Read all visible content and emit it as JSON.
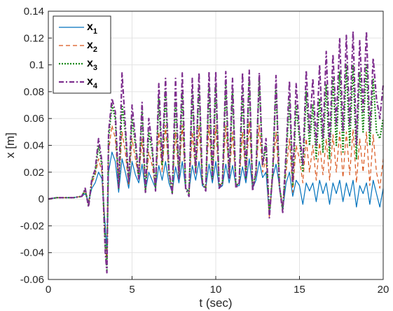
{
  "chart_data": {
    "type": "line",
    "title": "",
    "xlabel": "t (sec)",
    "ylabel": "x [m]",
    "xlim": [
      0,
      20
    ],
    "ylim": [
      -0.06,
      0.14
    ],
    "xticks": [
      "0",
      "5",
      "10",
      "15",
      "20"
    ],
    "yticks": [
      "-0.06",
      "-0.04",
      "-0.02",
      "0",
      "0.02",
      "0.04",
      "0.06",
      "0.08",
      "0.1",
      "0.12",
      "0.14"
    ],
    "grid": true,
    "legend": "top-left",
    "series": [
      {
        "name": "x1",
        "label_main": "x",
        "label_sub": "1",
        "color": "#0072BD",
        "dash": "",
        "width": 1.2,
        "x": [
          0,
          0.5,
          1.0,
          1.5,
          2.0,
          2.2,
          2.4,
          2.6,
          2.8,
          3.0,
          3.2,
          3.4,
          3.5,
          3.6,
          3.8,
          4.0,
          4.2,
          4.4,
          4.6,
          4.8,
          5.0,
          5.2,
          5.4,
          5.6,
          5.8,
          6.0,
          6.2,
          6.4,
          6.6,
          6.8,
          7.0,
          7.2,
          7.4,
          7.6,
          7.8,
          8.0,
          8.2,
          8.4,
          8.6,
          8.8,
          9.0,
          9.2,
          9.4,
          9.6,
          9.8,
          10.0,
          10.2,
          10.4,
          10.6,
          10.8,
          11.0,
          11.2,
          11.4,
          11.6,
          11.8,
          12.0,
          12.2,
          12.4,
          12.6,
          12.8,
          13.0,
          13.2,
          13.4,
          13.6,
          13.8,
          14.0,
          14.2,
          14.4,
          14.6,
          14.8,
          15.0,
          15.2,
          15.4,
          15.6,
          15.8,
          16.0,
          16.2,
          16.4,
          16.6,
          16.8,
          17.0,
          17.2,
          17.4,
          17.6,
          17.8,
          18.0,
          18.2,
          18.4,
          18.6,
          18.8,
          19.0,
          19.2,
          19.4,
          19.6,
          19.8,
          20.0
        ],
        "values": [
          0,
          0.001,
          0.001,
          0.001,
          0.002,
          0.004,
          -0.002,
          0.008,
          0.012,
          0.02,
          0.015,
          -0.02,
          -0.04,
          0.02,
          0.035,
          0.028,
          0.005,
          0.03,
          0.02,
          0.008,
          0.028,
          0.018,
          0.012,
          0.026,
          0.006,
          0.02,
          0.014,
          0.008,
          0.025,
          0.014,
          0.028,
          0.012,
          0.005,
          0.024,
          0.012,
          0.028,
          0.008,
          0.006,
          0.025,
          0.014,
          0.028,
          0.01,
          0.008,
          0.026,
          0.012,
          0.028,
          0.008,
          0.01,
          0.026,
          0.012,
          0.025,
          0.01,
          0.01,
          0.024,
          0.012,
          0.03,
          0.008,
          0.014,
          0.028,
          0.016,
          0.02,
          -0.012,
          0.016,
          0.026,
          0.01,
          -0.008,
          0.012,
          0.02,
          0.002,
          0.014,
          0.01,
          -0.004,
          0.012,
          0.006,
          0.012,
          -0.002,
          0.014,
          0.004,
          0.012,
          -0.004,
          0.012,
          0.004,
          0.014,
          -0.002,
          0.012,
          0.002,
          0.014,
          -0.006,
          0.01,
          0.004,
          0.012,
          -0.004,
          0.014,
          0.004,
          -0.006,
          0.008
        ]
      },
      {
        "name": "x2",
        "label_main": "x",
        "label_sub": "2",
        "color": "#D95319",
        "dash": "6,4",
        "width": 1.2,
        "x": [
          0,
          0.5,
          1.0,
          1.5,
          2.0,
          2.2,
          2.4,
          2.6,
          2.8,
          3.0,
          3.2,
          3.4,
          3.5,
          3.6,
          3.8,
          4.0,
          4.2,
          4.4,
          4.6,
          4.8,
          5.0,
          5.2,
          5.4,
          5.6,
          5.8,
          6.0,
          6.2,
          6.4,
          6.6,
          6.8,
          7.0,
          7.2,
          7.4,
          7.6,
          7.8,
          8.0,
          8.2,
          8.4,
          8.6,
          8.8,
          9.0,
          9.2,
          9.4,
          9.6,
          9.8,
          10.0,
          10.2,
          10.4,
          10.6,
          10.8,
          11.0,
          11.2,
          11.4,
          11.6,
          11.8,
          12.0,
          12.2,
          12.4,
          12.6,
          12.8,
          13.0,
          13.2,
          13.4,
          13.6,
          13.8,
          14.0,
          14.2,
          14.4,
          14.6,
          14.8,
          15.0,
          15.2,
          15.4,
          15.6,
          15.8,
          16.0,
          16.2,
          16.4,
          16.6,
          16.8,
          17.0,
          17.2,
          17.4,
          17.6,
          17.8,
          18.0,
          18.2,
          18.4,
          18.6,
          18.8,
          19.0,
          19.2,
          19.4,
          19.6,
          19.8,
          20.0
        ],
        "values": [
          0,
          0.001,
          0.001,
          0.001,
          0.002,
          0.006,
          -0.004,
          0.012,
          0.018,
          0.03,
          0.02,
          -0.03,
          -0.05,
          0.035,
          0.055,
          0.045,
          0.008,
          0.05,
          0.035,
          0.01,
          0.045,
          0.03,
          0.015,
          0.045,
          0.005,
          0.035,
          0.025,
          0.008,
          0.05,
          0.02,
          0.055,
          0.018,
          0.004,
          0.05,
          0.015,
          0.055,
          0.008,
          0.005,
          0.05,
          0.018,
          0.055,
          0.012,
          0.008,
          0.055,
          0.015,
          0.055,
          0.01,
          0.012,
          0.055,
          0.015,
          0.05,
          0.01,
          0.012,
          0.05,
          0.015,
          0.058,
          0.008,
          0.018,
          0.055,
          0.02,
          0.03,
          -0.014,
          0.02,
          0.05,
          0.01,
          -0.006,
          0.02,
          0.045,
          0.005,
          0.04,
          0.03,
          0.012,
          0.045,
          0.02,
          0.04,
          0.014,
          0.042,
          0.018,
          0.045,
          0.014,
          0.048,
          0.02,
          0.05,
          0.016,
          0.05,
          0.018,
          0.052,
          0.012,
          0.045,
          0.02,
          0.05,
          0.01,
          0.048,
          0.02,
          0.008,
          0.03
        ]
      },
      {
        "name": "x3",
        "label_main": "x",
        "label_sub": "3",
        "color": "#1A8A1A",
        "dash": "2,2",
        "width": 2.2,
        "x": [
          0,
          0.5,
          1.0,
          1.5,
          2.0,
          2.2,
          2.4,
          2.6,
          2.8,
          3.0,
          3.2,
          3.4,
          3.5,
          3.6,
          3.8,
          4.0,
          4.2,
          4.4,
          4.6,
          4.8,
          5.0,
          5.2,
          5.4,
          5.6,
          5.8,
          6.0,
          6.2,
          6.4,
          6.6,
          6.8,
          7.0,
          7.2,
          7.4,
          7.6,
          7.8,
          8.0,
          8.2,
          8.4,
          8.6,
          8.8,
          9.0,
          9.2,
          9.4,
          9.6,
          9.8,
          10.0,
          10.2,
          10.4,
          10.6,
          10.8,
          11.0,
          11.2,
          11.4,
          11.6,
          11.8,
          12.0,
          12.2,
          12.4,
          12.6,
          12.8,
          13.0,
          13.2,
          13.4,
          13.6,
          13.8,
          14.0,
          14.2,
          14.4,
          14.6,
          14.8,
          15.0,
          15.2,
          15.4,
          15.6,
          15.8,
          16.0,
          16.2,
          16.4,
          16.6,
          16.8,
          17.0,
          17.2,
          17.4,
          17.6,
          17.8,
          18.0,
          18.2,
          18.4,
          18.6,
          18.8,
          19.0,
          19.2,
          19.4,
          19.6,
          19.8,
          20.0
        ],
        "values": [
          0,
          0.001,
          0.001,
          0.001,
          0.002,
          0.007,
          -0.005,
          0.014,
          0.02,
          0.04,
          0.025,
          -0.035,
          -0.053,
          0.045,
          0.07,
          0.06,
          0.008,
          0.07,
          0.05,
          0.012,
          0.06,
          0.04,
          0.015,
          0.065,
          0.005,
          0.05,
          0.035,
          0.008,
          0.075,
          0.025,
          0.08,
          0.02,
          0.004,
          0.075,
          0.015,
          0.08,
          0.008,
          0.004,
          0.08,
          0.02,
          0.085,
          0.012,
          0.008,
          0.085,
          0.015,
          0.085,
          0.01,
          0.012,
          0.085,
          0.015,
          0.08,
          0.01,
          0.012,
          0.08,
          0.015,
          0.09,
          0.008,
          0.02,
          0.09,
          0.025,
          0.04,
          -0.012,
          0.02,
          0.085,
          0.01,
          -0.008,
          0.03,
          0.075,
          0.01,
          0.07,
          0.045,
          0.02,
          0.08,
          0.04,
          0.07,
          0.03,
          0.075,
          0.035,
          0.085,
          0.03,
          0.09,
          0.04,
          0.095,
          0.035,
          0.1,
          0.04,
          0.1,
          0.03,
          0.095,
          0.05,
          0.1,
          0.04,
          0.09,
          0.05,
          0.045,
          0.06
        ]
      },
      {
        "name": "x4",
        "label_main": "x",
        "label_sub": "4",
        "color": "#7E2F8E",
        "dash": "7,3,2,3",
        "width": 2.2,
        "x": [
          0,
          0.5,
          1.0,
          1.5,
          2.0,
          2.2,
          2.4,
          2.6,
          2.8,
          3.0,
          3.2,
          3.4,
          3.5,
          3.6,
          3.8,
          4.0,
          4.2,
          4.4,
          4.6,
          4.8,
          5.0,
          5.2,
          5.4,
          5.6,
          5.8,
          6.0,
          6.2,
          6.4,
          6.6,
          6.8,
          7.0,
          7.2,
          7.4,
          7.6,
          7.8,
          8.0,
          8.2,
          8.4,
          8.6,
          8.8,
          9.0,
          9.2,
          9.4,
          9.6,
          9.8,
          10.0,
          10.2,
          10.4,
          10.6,
          10.8,
          11.0,
          11.2,
          11.4,
          11.6,
          11.8,
          12.0,
          12.2,
          12.4,
          12.6,
          12.8,
          13.0,
          13.2,
          13.4,
          13.6,
          13.8,
          14.0,
          14.2,
          14.4,
          14.6,
          14.8,
          15.0,
          15.2,
          15.4,
          15.6,
          15.8,
          16.0,
          16.2,
          16.4,
          16.6,
          16.8,
          17.0,
          17.2,
          17.4,
          17.6,
          17.8,
          18.0,
          18.2,
          18.4,
          18.6,
          18.8,
          19.0,
          19.2,
          19.4,
          19.6,
          19.8,
          20.0
        ],
        "values": [
          0,
          0.001,
          0.001,
          0.001,
          0.002,
          0.008,
          -0.006,
          0.015,
          0.022,
          0.045,
          0.028,
          -0.04,
          -0.055,
          0.05,
          0.075,
          0.065,
          0.008,
          0.094,
          0.055,
          0.012,
          0.07,
          0.045,
          0.015,
          0.072,
          0.005,
          0.06,
          0.04,
          0.006,
          0.086,
          0.028,
          0.09,
          0.022,
          0.004,
          0.09,
          0.015,
          0.094,
          0.008,
          0.002,
          0.09,
          0.02,
          0.094,
          0.012,
          0.006,
          0.095,
          0.015,
          0.095,
          0.008,
          0.012,
          0.095,
          0.015,
          0.09,
          0.008,
          0.012,
          0.094,
          0.015,
          0.096,
          0.006,
          0.02,
          0.094,
          0.025,
          0.045,
          -0.014,
          0.02,
          0.092,
          0.01,
          -0.01,
          0.035,
          0.088,
          0.012,
          0.086,
          0.05,
          0.025,
          0.096,
          0.05,
          0.09,
          0.04,
          0.1,
          0.045,
          0.11,
          0.04,
          0.108,
          0.055,
          0.12,
          0.05,
          0.122,
          0.055,
          0.125,
          0.04,
          0.118,
          0.065,
          0.125,
          0.05,
          0.105,
          0.075,
          0.06,
          0.085
        ]
      }
    ]
  }
}
